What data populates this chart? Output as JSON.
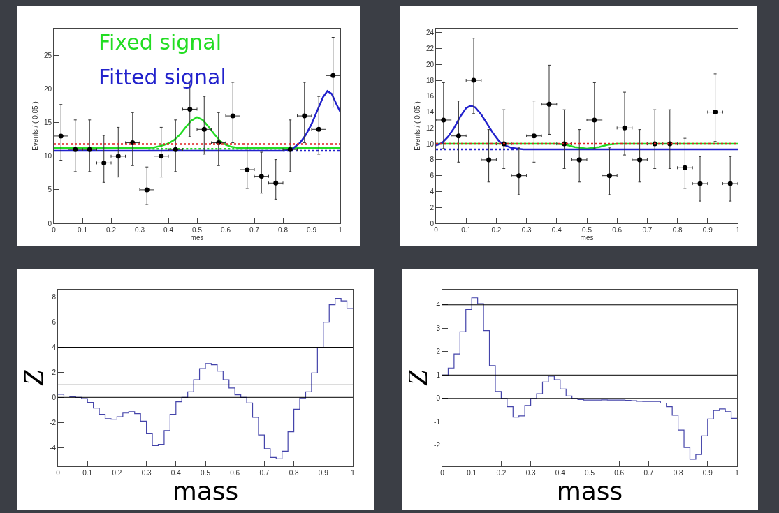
{
  "chart_data": [
    {
      "type": "scatter",
      "xlabel": "mes",
      "ylabel": "Events / ( 0.05 )",
      "xlim": [
        0,
        1
      ],
      "ylim": [
        0,
        29
      ],
      "xticks": [
        0,
        0.1,
        0.2,
        0.3,
        0.4,
        0.5,
        0.6,
        0.7,
        0.8,
        0.9,
        1
      ],
      "yticks": [
        0,
        5,
        10,
        15,
        20,
        25
      ],
      "x": [
        0.025,
        0.075,
        0.125,
        0.175,
        0.225,
        0.275,
        0.325,
        0.375,
        0.425,
        0.475,
        0.525,
        0.575,
        0.625,
        0.675,
        0.725,
        0.775,
        0.825,
        0.875,
        0.925,
        0.975
      ],
      "series": [
        {
          "name": "Fixed signal",
          "type": "line",
          "color": "#22dd22",
          "x": [
            0,
            0.3,
            0.35,
            0.38,
            0.4,
            0.42,
            0.44,
            0.46,
            0.48,
            0.5,
            0.52,
            0.54,
            0.56,
            0.58,
            0.6,
            0.62,
            0.65,
            0.7,
            1
          ],
          "values": [
            11.2,
            11.2,
            11.3,
            11.6,
            11.9,
            12.4,
            13.2,
            14.3,
            15.3,
            15.8,
            15.4,
            14.4,
            13.3,
            12.3,
            11.7,
            11.4,
            11.2,
            11.2,
            11.2
          ],
          "line_style": "solid"
        },
        {
          "type": "line",
          "color": "#22dd22",
          "x": [
            0.33,
            0.83
          ],
          "values": [
            11.1,
            11.1
          ],
          "line_style": "dotted"
        },
        {
          "type": "line",
          "color": "#2222cc",
          "x": [
            0.8,
            1
          ],
          "values": [
            10.8,
            10.8
          ],
          "line_style": "dotted"
        },
        {
          "name": "Fitted signal",
          "type": "line",
          "color": "#2222cc",
          "x": [
            0,
            0.8,
            0.83,
            0.86,
            0.88,
            0.9,
            0.92,
            0.94,
            0.955,
            0.97,
            0.985,
            1
          ],
          "values": [
            10.8,
            10.8,
            11.0,
            12.0,
            13.2,
            14.8,
            16.8,
            18.8,
            19.7,
            19.3,
            17.9,
            16.6
          ],
          "line_style": "solid"
        },
        {
          "type": "scatter",
          "color": "#000000",
          "marker": "circle",
          "values": [
            13,
            11,
            11,
            9,
            10,
            12,
            5,
            10,
            11,
            17,
            14,
            12,
            16,
            8,
            7,
            6,
            11,
            16,
            14,
            22
          ],
          "errors": [
            [
              9.4,
              17.7
            ],
            [
              7.7,
              15.4
            ],
            [
              7.7,
              15.4
            ],
            [
              6.1,
              13.1
            ],
            [
              6.9,
              14.3
            ],
            [
              8.6,
              16.5
            ],
            [
              2.8,
              8.4
            ],
            [
              6.9,
              14.3
            ],
            [
              7.7,
              15.4
            ],
            [
              12.9,
              21.1
            ],
            [
              10.3,
              18.9
            ],
            [
              8.6,
              16.5
            ],
            [
              12,
              21
            ],
            [
              5.2,
              11.8
            ],
            [
              4.5,
              10.6
            ],
            [
              3.6,
              9.5
            ],
            [
              7.7,
              15.4
            ],
            [
              12,
              21
            ],
            [
              10.3,
              18.9
            ],
            [
              17.3,
              27.7
            ]
          ],
          "xerrors": [
            0.025,
            0.025,
            0.025,
            0.025,
            0.025,
            0.025,
            0.025,
            0.025,
            0.025,
            0.025,
            0.025,
            0.025,
            0.025,
            0.025,
            0.025,
            0.025,
            0.025,
            0.025,
            0.025,
            0.025
          ]
        }
      ],
      "ref_lines": [
        {
          "axis": "y",
          "value": 11.8,
          "color": "#e02020",
          "line_style": "dotted"
        }
      ]
    },
    {
      "type": "scatter",
      "xlabel": "mes",
      "ylabel": "Events / ( 0.05 )",
      "xlim": [
        0,
        1
      ],
      "ylim": [
        0,
        24.5
      ],
      "xticks": [
        0,
        0.1,
        0.2,
        0.3,
        0.4,
        0.5,
        0.6,
        0.7,
        0.8,
        0.9,
        1
      ],
      "yticks": [
        0,
        2,
        4,
        6,
        8,
        10,
        12,
        14,
        16,
        18,
        20,
        22,
        24
      ],
      "x": [
        0.025,
        0.075,
        0.125,
        0.175,
        0.225,
        0.275,
        0.325,
        0.375,
        0.425,
        0.475,
        0.525,
        0.575,
        0.625,
        0.675,
        0.725,
        0.775,
        0.825,
        0.875,
        0.925,
        0.975
      ],
      "series": [
        {
          "type": "line",
          "color": "#22dd22",
          "x": [
            0,
            0.4,
            0.43,
            0.46,
            0.48,
            0.5,
            0.52,
            0.54,
            0.57,
            0.6,
            1
          ],
          "values": [
            10,
            10,
            9.9,
            9.6,
            9.5,
            9.4,
            9.5,
            9.6,
            9.9,
            10,
            10
          ],
          "line_style": "solid"
        },
        {
          "type": "line",
          "color": "#2222cc",
          "x": [
            0,
            0.28
          ],
          "values": [
            9.3,
            9.3
          ],
          "line_style": "dotted"
        },
        {
          "type": "line",
          "color": "#2222cc",
          "x": [
            0,
            0.02,
            0.04,
            0.06,
            0.08,
            0.1,
            0.115,
            0.13,
            0.15,
            0.17,
            0.19,
            0.21,
            0.23,
            0.25,
            0.27,
            0.29,
            1
          ],
          "values": [
            9.8,
            10.1,
            10.9,
            12.0,
            13.4,
            14.5,
            14.8,
            14.6,
            13.7,
            12.5,
            11.3,
            10.3,
            9.8,
            9.5,
            9.4,
            9.3,
            9.3
          ],
          "line_style": "solid"
        },
        {
          "type": "scatter",
          "color": "#000000",
          "marker": "circle",
          "values": [
            13,
            11,
            18,
            8,
            10,
            6,
            11,
            15,
            10,
            8,
            13,
            6,
            12,
            8,
            10,
            10,
            7,
            5,
            14,
            5
          ],
          "errors": [
            [
              9.4,
              17.7
            ],
            [
              7.7,
              15.4
            ],
            [
              13.8,
              23.3
            ],
            [
              5.2,
              11.8
            ],
            [
              6.9,
              14.3
            ],
            [
              3.6,
              9.5
            ],
            [
              7.7,
              15.4
            ],
            [
              11.2,
              19.9
            ],
            [
              6.9,
              14.3
            ],
            [
              5.2,
              11.8
            ],
            [
              9.4,
              17.7
            ],
            [
              3.6,
              9.5
            ],
            [
              8.6,
              16.5
            ],
            [
              5.2,
              11.8
            ],
            [
              6.9,
              14.3
            ],
            [
              6.9,
              14.3
            ],
            [
              4.4,
              10.7
            ],
            [
              2.8,
              8.4
            ],
            [
              10.3,
              18.8
            ],
            [
              2.8,
              8.4
            ]
          ],
          "xerrors": [
            0.025,
            0.025,
            0.025,
            0.025,
            0.025,
            0.025,
            0.025,
            0.025,
            0.025,
            0.025,
            0.025,
            0.025,
            0.025,
            0.025,
            0.025,
            0.025,
            0.025,
            0.025,
            0.025,
            0.025
          ]
        }
      ],
      "ref_lines": [
        {
          "axis": "y",
          "value": 10,
          "color": "#e02020",
          "line_style": "dotted"
        }
      ]
    },
    {
      "type": "histogram",
      "xlabel": "mass",
      "ylabel": "Z",
      "xlim": [
        0,
        1
      ],
      "ylim": [
        -5.5,
        8.6
      ],
      "xticks": [
        0,
        0.1,
        0.2,
        0.3,
        0.4,
        0.5,
        0.6,
        0.7,
        0.8,
        0.9,
        1
      ],
      "yticks": [
        -4,
        -2,
        0,
        2,
        4,
        6,
        8
      ],
      "color": "#4444aa",
      "bins": [
        0,
        0.02,
        0.04,
        0.06,
        0.08,
        0.1,
        0.12,
        0.14,
        0.16,
        0.18,
        0.2,
        0.22,
        0.24,
        0.26,
        0.28,
        0.3,
        0.32,
        0.34,
        0.36,
        0.38,
        0.4,
        0.42,
        0.44,
        0.46,
        0.48,
        0.5,
        0.52,
        0.54,
        0.56,
        0.58,
        0.6,
        0.62,
        0.64,
        0.66,
        0.68,
        0.7,
        0.72,
        0.74,
        0.76,
        0.78,
        0.8,
        0.82,
        0.84,
        0.86,
        0.88,
        0.9,
        0.92,
        0.94,
        0.96,
        0.98,
        1
      ],
      "values": [
        0.25,
        0.1,
        0.05,
        0,
        -0.1,
        -0.4,
        -0.85,
        -1.35,
        -1.7,
        -1.75,
        -1.55,
        -1.25,
        -1.15,
        -1.3,
        -1.9,
        -2.9,
        -3.85,
        -3.75,
        -2.65,
        -1.35,
        -0.35,
        0,
        0.45,
        1.4,
        2.3,
        2.7,
        2.6,
        2.1,
        1.4,
        0.75,
        0.2,
        0,
        -0.45,
        -1.6,
        -3,
        -4.1,
        -4.8,
        -4.9,
        -4.3,
        -2.75,
        -0.95,
        -0.05,
        0.45,
        1.95,
        4,
        6,
        7.4,
        7.9,
        7.7,
        7.1
      ],
      "ref_lines": [
        {
          "axis": "y",
          "value": 4,
          "color": "#000000"
        },
        {
          "axis": "y",
          "value": 1,
          "color": "#000000"
        },
        {
          "axis": "y",
          "value": 0,
          "color": "#000000"
        }
      ]
    },
    {
      "type": "histogram",
      "xlabel": "mass",
      "ylabel": "Z",
      "xlim": [
        0,
        1
      ],
      "ylim": [
        -2.9,
        4.65
      ],
      "xticks": [
        0,
        0.1,
        0.2,
        0.3,
        0.4,
        0.5,
        0.6,
        0.7,
        0.8,
        0.9,
        1
      ],
      "yticks": [
        -2,
        -1,
        0,
        1,
        2,
        3,
        4
      ],
      "color": "#4444aa",
      "bins": [
        0,
        0.02,
        0.04,
        0.06,
        0.08,
        0.1,
        0.12,
        0.14,
        0.16,
        0.18,
        0.2,
        0.22,
        0.24,
        0.26,
        0.28,
        0.3,
        0.32,
        0.34,
        0.36,
        0.38,
        0.4,
        0.42,
        0.44,
        0.46,
        0.48,
        0.5,
        0.52,
        0.54,
        0.56,
        0.58,
        0.6,
        0.62,
        0.64,
        0.66,
        0.68,
        0.7,
        0.72,
        0.74,
        0.76,
        0.78,
        0.8,
        0.82,
        0.84,
        0.86,
        0.88,
        0.9,
        0.92,
        0.94,
        0.96,
        0.98,
        1
      ],
      "values": [
        1,
        1.3,
        1.9,
        2.85,
        3.8,
        4.3,
        4.05,
        2.9,
        1.4,
        0.3,
        0,
        -0.35,
        -0.8,
        -0.75,
        -0.3,
        0,
        0.2,
        0.7,
        0.95,
        0.8,
        0.4,
        0.1,
        0,
        -0.05,
        -0.07,
        -0.07,
        -0.07,
        -0.06,
        -0.07,
        -0.07,
        -0.07,
        -0.08,
        -0.1,
        -0.12,
        -0.13,
        -0.13,
        -0.13,
        -0.2,
        -0.35,
        -0.72,
        -1.35,
        -2.1,
        -2.6,
        -2.4,
        -1.6,
        -0.88,
        -0.52,
        -0.45,
        -0.57,
        -0.85
      ],
      "ref_lines": [
        {
          "axis": "y",
          "value": 4,
          "color": "#000000"
        },
        {
          "axis": "y",
          "value": 1,
          "color": "#000000"
        },
        {
          "axis": "y",
          "value": 0,
          "color": "#000000"
        }
      ]
    }
  ]
}
